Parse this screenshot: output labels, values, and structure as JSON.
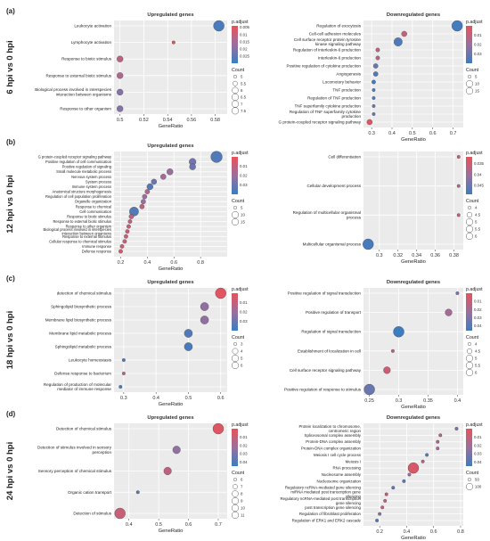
{
  "figure": {
    "title": ""
  },
  "chart_data": [
    {
      "panel_label": "(a)",
      "row_label": "6 hpi vs 0 hpi",
      "side": "left",
      "type": "scatter",
      "title": "Upregulated genes",
      "xlabel": "GeneRatio",
      "xlim": [
        0.495,
        0.59
      ],
      "xticks": [
        0.5,
        0.52,
        0.54,
        0.56,
        0.58
      ],
      "terms": [
        "Leukocyte activation",
        "Lymphocyte activation",
        "Response to biotic stimulus",
        "Response to external biotic stimulus",
        "Biological process involved in interspecies interaction between organisms",
        "Response to other organism"
      ],
      "x": [
        0.583,
        0.545,
        0.5,
        0.5,
        0.5,
        0.5
      ],
      "count": [
        7.5,
        5,
        6,
        6,
        6,
        6
      ],
      "padj": [
        0.028,
        0.005,
        0.012,
        0.014,
        0.02,
        0.02
      ],
      "color_title": "p.adjust",
      "color_range": [
        0.004,
        0.03
      ],
      "color_ticks": [
        0.005,
        0.01,
        0.015,
        0.02,
        0.025
      ],
      "size_title": "Count",
      "size_legend": [
        5.0,
        5.5,
        6.0,
        6.5,
        7.0,
        7.5
      ]
    },
    {
      "panel_label": "",
      "row_label": "",
      "side": "right",
      "type": "scatter",
      "title": "Downregulated genes",
      "xlabel": "GeneRatio",
      "xlim": [
        0.26,
        0.75
      ],
      "xticks": [
        0.3,
        0.4,
        0.5,
        0.6,
        0.7
      ],
      "terms": [
        "Regulation of exocytosis",
        "Cell-cell adhesion molecules",
        "Cell surface receptor protein tyrosine kinase signaling pathway",
        "Regulation of interleukin-6 production",
        "Interleukin-6 production",
        "Positive regulation of cytokine production",
        "Angiogenesis",
        "Locomotory behavior",
        "TNF production",
        "Regulation of TNF production",
        "TNF superfamily cytokine production",
        "Regulation of TNF superfamily cytokine production",
        "G protein-coupled receptor signaling pathway"
      ],
      "x": [
        0.72,
        0.46,
        0.43,
        0.33,
        0.33,
        0.32,
        0.32,
        0.31,
        0.31,
        0.31,
        0.31,
        0.31,
        0.29
      ],
      "count": [
        15,
        8,
        12,
        6,
        6,
        7,
        7,
        6,
        5,
        5,
        5,
        5,
        8
      ],
      "padj": [
        0.038,
        0.01,
        0.035,
        0.012,
        0.012,
        0.03,
        0.036,
        0.038,
        0.035,
        0.035,
        0.03,
        0.03,
        0.002
      ],
      "color_title": "p.adjust",
      "color_range": [
        0.0,
        0.04
      ],
      "color_ticks": [
        0.01,
        0.02,
        0.03
      ],
      "size_title": "Count",
      "size_legend": [
        5,
        10,
        15
      ]
    },
    {
      "panel_label": "(b)",
      "row_label": "12 hpi vs 0 hpi",
      "side": "left",
      "type": "scatter",
      "title": "Upregulated genes",
      "xlabel": "GeneRatio",
      "xlim": [
        0.15,
        1.0
      ],
      "xticks": [
        0.2,
        0.4,
        0.6,
        0.8
      ],
      "terms": [
        "G protein-coupled receptor signaling pathway",
        "Positive regulation of cell communication",
        "Positive regulation of signaling",
        "Small molecule metabolic process",
        "Nervous system process",
        "System process",
        "Immune system process",
        "Anatomical structure morphogenesis",
        "Regulation of cell population proliferation",
        "Organelle organization",
        "Response to chemical",
        "Cell communication",
        "Response to biotic stimulus",
        "Response to external biotic stimulus",
        "Response to other organism",
        "Biological process involved in interspecies interaction between organisms",
        "Response to external stimulus",
        "Cellular response to chemical stimulus",
        "Immune response",
        "Defense response"
      ],
      "x": [
        0.92,
        0.74,
        0.74,
        0.57,
        0.52,
        0.45,
        0.42,
        0.4,
        0.38,
        0.37,
        0.36,
        0.3,
        0.28,
        0.27,
        0.26,
        0.25,
        0.24,
        0.23,
        0.21,
        0.2
      ],
      "count": [
        16,
        10,
        9,
        9,
        8,
        8,
        9,
        7,
        7,
        7,
        7,
        13,
        7,
        6,
        6,
        6,
        6,
        6,
        6,
        6
      ],
      "padj": [
        0.035,
        0.028,
        0.03,
        0.02,
        0.018,
        0.03,
        0.035,
        0.015,
        0.02,
        0.02,
        0.01,
        0.035,
        0.01,
        0.012,
        0.008,
        0.008,
        0.01,
        0.01,
        0.008,
        0.006
      ],
      "color_title": "p.adjust",
      "color_range": [
        0.0,
        0.04
      ],
      "color_ticks": [
        0.01,
        0.02,
        0.03
      ],
      "size_title": "Count",
      "size_legend": [
        5,
        10,
        15
      ]
    },
    {
      "panel_label": "",
      "row_label": "",
      "side": "right",
      "type": "scatter",
      "title": "",
      "xlabel": "GeneRatio",
      "xlim": [
        0.283,
        0.39
      ],
      "xticks": [
        0.3,
        0.32,
        0.34,
        0.36,
        0.38
      ],
      "terms": [
        "Cell differentiation",
        "Cellular development process",
        "Regulation of multicellular organismal process",
        "Multicellular organismal process"
      ],
      "x": [
        0.385,
        0.385,
        0.385,
        0.288
      ],
      "count": [
        4,
        4,
        4,
        6
      ],
      "padj": [
        0.035,
        0.037,
        0.036,
        0.048
      ],
      "color_title": "p.adjust",
      "color_range": [
        0.032,
        0.049
      ],
      "color_ticks": [
        0.035,
        0.04,
        0.045
      ],
      "size_title": "Count",
      "size_legend": [
        4.0,
        4.5,
        5.0,
        5.5,
        6.0
      ]
    },
    {
      "panel_label": "(c)",
      "row_label": "18 hpi vs 0 hpi",
      "side": "left",
      "type": "scatter",
      "title": "Upregulated genes",
      "xlabel": "GeneRatio",
      "xlim": [
        0.27,
        0.62
      ],
      "xticks": [
        0.3,
        0.4,
        0.5,
        0.6
      ],
      "terms": [
        "detection of chemical stimulus",
        "Sphingolipid biosynthetic process",
        "Membrane lipid biosynthetic process",
        "Membrane lipid metabolic process",
        "Sphingolipid metabolic process",
        "Leukocyte homeostasis",
        "Defense response to bacterium",
        "Regulation of production of molecular mediator of immune response"
      ],
      "x": [
        0.6,
        0.55,
        0.55,
        0.5,
        0.5,
        0.3,
        0.3,
        0.29
      ],
      "count": [
        6,
        5,
        5,
        5,
        5,
        3,
        3,
        3
      ],
      "padj": [
        0.002,
        0.022,
        0.022,
        0.035,
        0.037,
        0.036,
        0.012,
        0.036
      ],
      "color_title": "p.adjust",
      "color_range": [
        0.0,
        0.04
      ],
      "color_ticks": [
        0.01,
        0.02,
        0.03
      ],
      "size_title": "Count",
      "size_legend": [
        3,
        4,
        5,
        6
      ]
    },
    {
      "panel_label": "",
      "row_label": "",
      "side": "right",
      "type": "scatter",
      "title": "Downregulated genes",
      "xlabel": "GeneRatio",
      "xlim": [
        0.24,
        0.41
      ],
      "xticks": [
        0.25,
        0.3,
        0.35,
        0.4
      ],
      "terms": [
        "Positive regulation of signal transduction",
        "Positive regulation of transport",
        "Regulation of signal transduction",
        "Establishment of localization in cell",
        "Cell surface receptor signaling pathway",
        "Positive regulation of response to stimulus"
      ],
      "x": [
        0.4,
        0.385,
        0.3,
        0.29,
        0.28,
        0.25
      ],
      "count": [
        4,
        5,
        6,
        4,
        5,
        6
      ],
      "padj": [
        0.03,
        0.02,
        0.045,
        0.015,
        0.008,
        0.035
      ],
      "color_title": "p.adjust",
      "color_range": [
        0.0,
        0.046
      ],
      "color_ticks": [
        0.01,
        0.02,
        0.03,
        0.04
      ],
      "size_title": "Count",
      "size_legend": [
        4.0,
        4.5,
        5.0,
        5.5,
        6.0
      ]
    },
    {
      "panel_label": "(d)",
      "row_label": "24 hpi vs 0 hpi",
      "side": "left",
      "type": "scatter",
      "title": "Upregulated genes",
      "xlabel": "GeneRatio",
      "xlim": [
        0.35,
        0.73
      ],
      "xticks": [
        0.4,
        0.5,
        0.6,
        0.7
      ],
      "terms": [
        "Detection of chemical stimulus",
        "Detection of stimulus involved in sensory perception",
        "Sensory perception of chemical stimulus",
        "Organic cation transport",
        "Detection of stimulus"
      ],
      "x": [
        0.7,
        0.56,
        0.53,
        0.43,
        0.37
      ],
      "count": [
        11,
        9,
        9,
        6,
        11
      ],
      "padj": [
        0.003,
        0.025,
        0.012,
        0.04,
        0.01
      ],
      "color_title": "p.adjust",
      "color_range": [
        0.0,
        0.045
      ],
      "color_ticks": [
        0.01,
        0.02,
        0.03,
        0.04
      ],
      "size_title": "Count",
      "size_legend": [
        6,
        7,
        8,
        9,
        10,
        11
      ]
    },
    {
      "panel_label": "",
      "row_label": "",
      "side": "right",
      "type": "scatter",
      "title": "Downregulated genes",
      "xlabel": "GeneRatio",
      "xlim": [
        0.08,
        0.82
      ],
      "xticks": [
        0.2,
        0.4,
        0.6,
        0.8
      ],
      "terms": [
        "Protein localization to chromosome, centromeric region",
        "Spliceosomal complex assembly",
        "Protein-DNA complex assembly",
        "Protein-DNA complex organization",
        "Meiosis I cell cycle process",
        "Meiosis I",
        "RNA processing",
        "Nucleosome assembly",
        "Nucleosome organization",
        "Regulatory ncRNA-mediated gene silencing",
        "miRNA mediated post transcription gene silencing",
        "Regulatory ncRNA-mediated post transcription gene silencing",
        "post transcription gene silencing",
        "Regulation of fibroblast proliferation",
        "Regulation of ERK1 and ERK2 cascade"
      ],
      "x": [
        0.77,
        0.65,
        0.63,
        0.63,
        0.55,
        0.52,
        0.45,
        0.42,
        0.38,
        0.3,
        0.25,
        0.24,
        0.22,
        0.2,
        0.18
      ],
      "count": [
        20,
        40,
        30,
        30,
        25,
        15,
        100,
        40,
        35,
        15,
        15,
        15,
        15,
        15,
        15
      ],
      "padj": [
        0.03,
        0.015,
        0.018,
        0.02,
        0.038,
        0.015,
        0.005,
        0.02,
        0.035,
        0.035,
        0.012,
        0.012,
        0.01,
        0.03,
        0.038
      ],
      "color_title": "p.adjust",
      "color_range": [
        0.0,
        0.045
      ],
      "color_ticks": [
        0.01,
        0.02,
        0.03,
        0.04
      ],
      "size_title": "Count",
      "size_legend": [
        50,
        100
      ]
    }
  ]
}
